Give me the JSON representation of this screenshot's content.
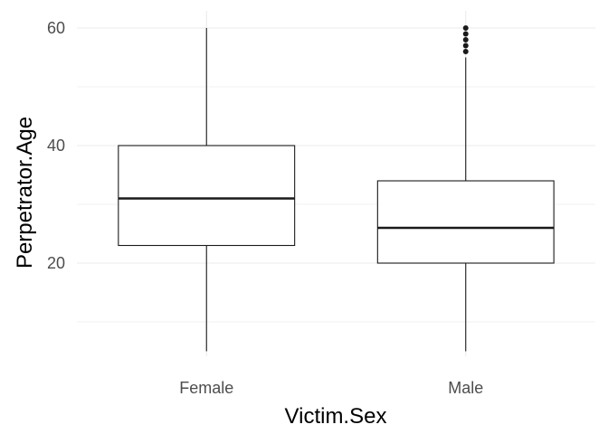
{
  "chart_data": {
    "type": "boxplot",
    "xlabel": "Victim.Sex",
    "ylabel": "Perpetrator.Age",
    "categories": [
      "Female",
      "Male"
    ],
    "ylim": [
      3,
      63
    ],
    "yticks": [
      20,
      40,
      60
    ],
    "grid": true,
    "boxes": [
      {
        "category": "Female",
        "whisker_low": 5,
        "q1": 23,
        "median": 31,
        "q3": 40,
        "whisker_high": 60,
        "outliers": []
      },
      {
        "category": "Male",
        "whisker_low": 5,
        "q1": 20,
        "median": 26,
        "q3": 34,
        "whisker_high": 55,
        "outliers": [
          56,
          57,
          58,
          59,
          60
        ]
      }
    ]
  }
}
